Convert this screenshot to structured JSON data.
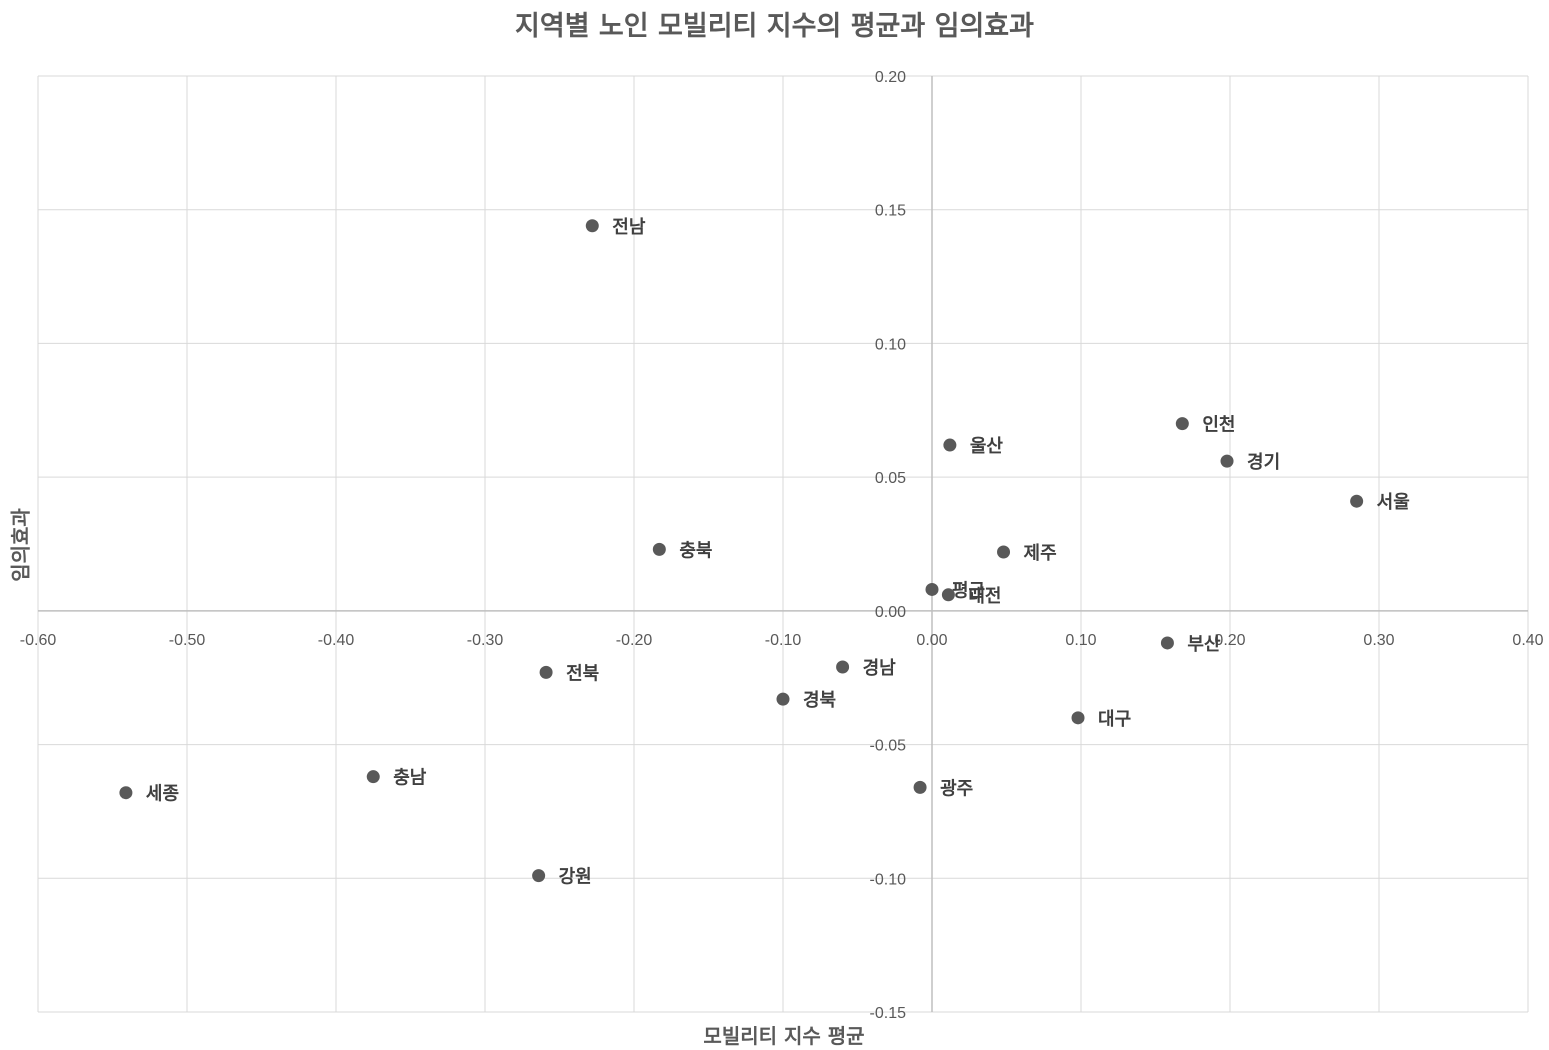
{
  "chart_data": {
    "type": "scatter",
    "title": "지역별 노인 모빌리티 지수의 평균과 임의효과",
    "xlabel": "모빌리티 지수 평균",
    "ylabel": "임의효과",
    "xlim": [
      -0.6,
      0.4
    ],
    "ylim": [
      -0.15,
      0.2
    ],
    "x_ticks": [
      "-0.60",
      "-0.50",
      "-0.40",
      "-0.30",
      "-0.20",
      "-0.10",
      "0.00",
      "0.10",
      "0.20",
      "0.30",
      "0.40"
    ],
    "y_ticks": [
      "-0.15",
      "-0.10",
      "-0.05",
      "0.00",
      "0.05",
      "0.10",
      "0.15",
      "0.20"
    ],
    "grid": true,
    "marker_color": "#595959",
    "points": [
      {
        "label": "전남",
        "x": -0.228,
        "y": 0.144
      },
      {
        "label": "충북",
        "x": -0.183,
        "y": 0.023
      },
      {
        "label": "전북",
        "x": -0.259,
        "y": -0.023
      },
      {
        "label": "충남",
        "x": -0.375,
        "y": -0.062
      },
      {
        "label": "세종",
        "x": -0.541,
        "y": -0.068
      },
      {
        "label": "강원",
        "x": -0.264,
        "y": -0.099
      },
      {
        "label": "경남",
        "x": -0.06,
        "y": -0.021
      },
      {
        "label": "경북",
        "x": -0.1,
        "y": -0.033
      },
      {
        "label": "광주",
        "x": -0.008,
        "y": -0.066
      },
      {
        "label": "울산",
        "x": 0.012,
        "y": 0.062
      },
      {
        "label": "제주",
        "x": 0.048,
        "y": 0.022
      },
      {
        "label": "평균",
        "x": 0.0,
        "y": 0.008
      },
      {
        "label": "대전",
        "x": 0.011,
        "y": 0.006
      },
      {
        "label": "인천",
        "x": 0.168,
        "y": 0.07
      },
      {
        "label": "경기",
        "x": 0.198,
        "y": 0.056
      },
      {
        "label": "서울",
        "x": 0.285,
        "y": 0.041
      },
      {
        "label": "부산",
        "x": 0.158,
        "y": -0.012
      },
      {
        "label": "대구",
        "x": 0.098,
        "y": -0.04
      }
    ]
  }
}
